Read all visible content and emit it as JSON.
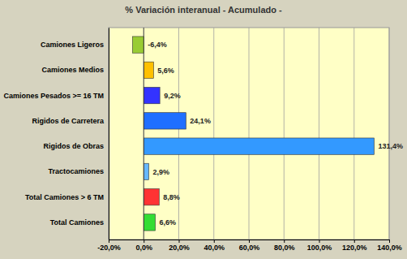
{
  "chart_data": {
    "type": "bar",
    "orientation": "horizontal",
    "title": "% Variación interanual - Acumulado -",
    "categories": [
      "Camiones Ligeros",
      "Camiones Medios",
      "Camiones Pesados >= 16 TM",
      "Rigidos de Carretera",
      "Rigidos de Obras",
      "Tractocamiones",
      "Total Camiones > 6 TM",
      "Total Camiones"
    ],
    "values": [
      -6.4,
      5.6,
      9.2,
      24.1,
      131.4,
      2.9,
      8.8,
      6.6
    ],
    "value_labels": [
      "-6,4%",
      "5,6%",
      "9,2%",
      "24,1%",
      "131,4%",
      "2,9%",
      "8,8%",
      "6,6%"
    ],
    "colors": [
      "#99cc33",
      "#ffc000",
      "#3333ff",
      "#1f6fff",
      "#3399ff",
      "#66b8ff",
      "#ff3333",
      "#33dd33"
    ],
    "xlim": [
      -20,
      140
    ],
    "xticks": [
      {
        "value": -20,
        "label": "-20,0%"
      },
      {
        "value": 0,
        "label": "0,0%"
      },
      {
        "value": 20,
        "label": "20,0%"
      },
      {
        "value": 40,
        "label": "40,0%"
      },
      {
        "value": 60,
        "label": "60,0%"
      },
      {
        "value": 80,
        "label": "80,0%"
      },
      {
        "value": 100,
        "label": "100,0%"
      },
      {
        "value": 120,
        "label": "120,0%"
      },
      {
        "value": 140,
        "label": "140,0%"
      }
    ],
    "grid": true,
    "data_labels": true
  }
}
